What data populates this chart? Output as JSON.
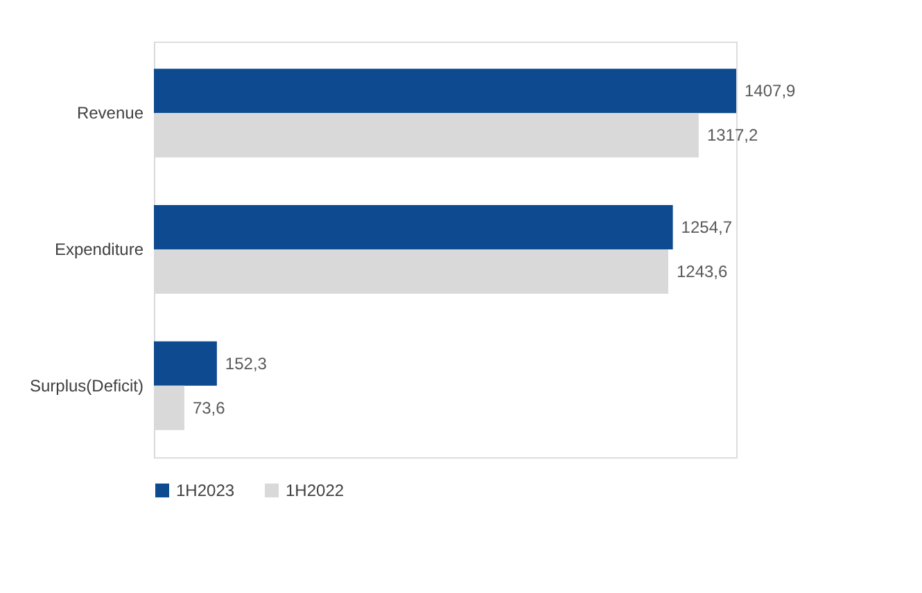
{
  "chart_data": {
    "type": "bar",
    "orientation": "horizontal",
    "categories": [
      "Revenue",
      "Expenditure",
      "Surplus(Deficit)"
    ],
    "series": [
      {
        "name": "1H2023",
        "color": "#0d4a8f",
        "values": [
          1407.9,
          1254.7,
          152.3
        ],
        "value_labels": [
          "1407,9",
          "1254,7",
          "152,3"
        ]
      },
      {
        "name": "1H2022",
        "color": "#d9d9d9",
        "values": [
          1317.2,
          1243.6,
          73.6
        ],
        "value_labels": [
          "1317,2",
          "1243,6",
          "73,6"
        ]
      }
    ],
    "legend": "bottom",
    "grid": false
  }
}
